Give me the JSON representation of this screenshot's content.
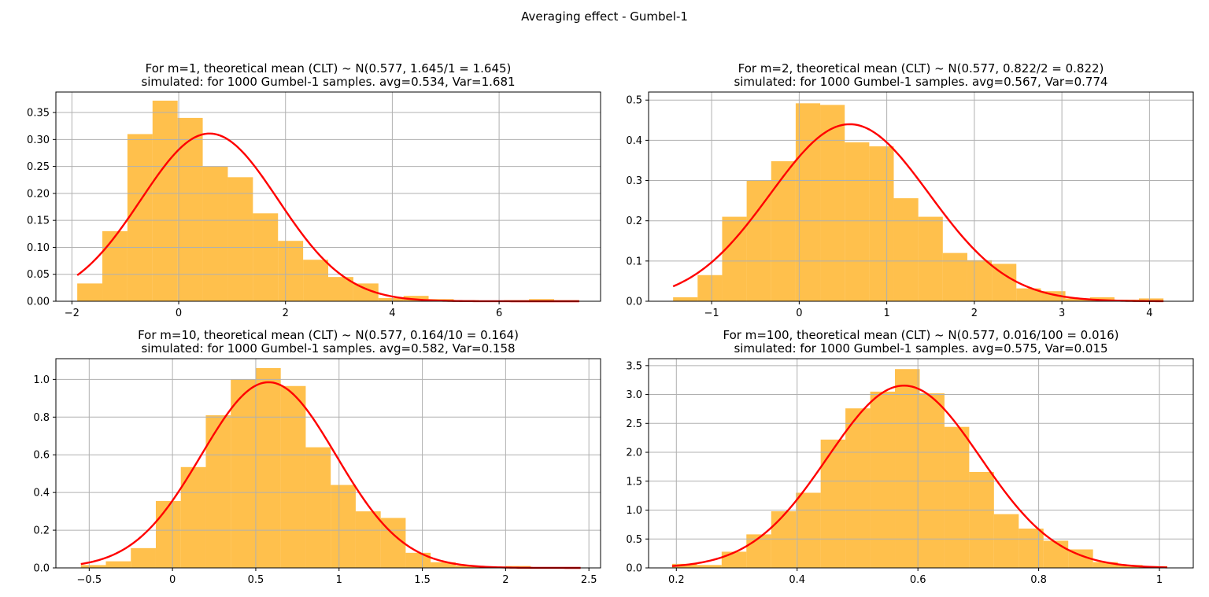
{
  "figure": {
    "suptitle": "Averaging effect - Gumbel-1"
  },
  "colors": {
    "bar": "#FFA500",
    "bar_alpha": 0.7,
    "curve": "#FF0000",
    "grid": "#b0b0b0"
  },
  "chart_data": [
    {
      "type": "bar",
      "title_line1": "For m=1, theoretical mean (CLT) ~ N(0.577, 1.645/1 = 1.645)",
      "title_line2": "simulated: for 1000 Gumbel-1 samples. avg=0.534, Var=1.681",
      "xlim": [
        -2.3,
        7.9
      ],
      "ylim": [
        0,
        0.388
      ],
      "xticks": [
        -2,
        0,
        2,
        4,
        6
      ],
      "yticks": [
        0.0,
        0.05,
        0.1,
        0.15,
        0.2,
        0.25,
        0.3,
        0.35
      ],
      "ytick_decimals": 2,
      "bin_edges": [
        -1.9,
        -1.43,
        -0.96,
        -0.49,
        -0.02,
        0.45,
        0.92,
        1.39,
        1.86,
        2.33,
        2.8,
        3.27,
        3.74,
        4.21,
        4.68,
        5.15,
        5.62,
        6.09,
        6.56,
        7.03,
        7.5
      ],
      "densities": [
        0.033,
        0.13,
        0.31,
        0.372,
        0.34,
        0.25,
        0.23,
        0.163,
        0.112,
        0.077,
        0.045,
        0.033,
        0.006,
        0.01,
        0.004,
        0.002,
        0.001,
        0.002,
        0.004,
        0.002
      ],
      "normal_curve": {
        "mean": 0.577,
        "variance": 1.645,
        "x_range": [
          -1.9,
          7.5
        ]
      }
    },
    {
      "type": "bar",
      "title_line1": "For m=2, theoretical mean (CLT) ~ N(0.577, 0.822/2 = 0.822)",
      "title_line2": "simulated: for 1000 Gumbel-1 samples. avg=0.567, Var=0.774",
      "xlim": [
        -1.72,
        4.5
      ],
      "ylim": [
        0,
        0.52
      ],
      "xticks": [
        -1,
        0,
        1,
        2,
        3,
        4
      ],
      "yticks": [
        0.0,
        0.1,
        0.2,
        0.3,
        0.4,
        0.5
      ],
      "ytick_decimals": 1,
      "bin_edges": [
        -1.44,
        -1.16,
        -0.88,
        -0.6,
        -0.32,
        -0.04,
        0.24,
        0.52,
        0.8,
        1.08,
        1.36,
        1.64,
        1.92,
        2.2,
        2.48,
        2.76,
        3.04,
        3.32,
        3.6,
        3.88,
        4.16
      ],
      "densities": [
        0.01,
        0.065,
        0.21,
        0.3,
        0.348,
        0.492,
        0.488,
        0.395,
        0.385,
        0.256,
        0.21,
        0.12,
        0.102,
        0.093,
        0.032,
        0.025,
        0.007,
        0.01,
        0.004,
        0.007
      ],
      "normal_curve": {
        "mean": 0.577,
        "variance": 0.822,
        "x_range": [
          -1.44,
          4.16
        ]
      }
    },
    {
      "type": "bar",
      "title_line1": "For m=10, theoretical mean (CLT) ~ N(0.577, 0.164/10 = 0.164)",
      "title_line2": "simulated: for 1000 Gumbel-1 samples. avg=0.582, Var=0.158",
      "xlim": [
        -0.7,
        2.57
      ],
      "ylim": [
        0,
        1.11
      ],
      "xticks": [
        -0.5,
        0.0,
        0.5,
        1.0,
        1.5,
        2.0,
        2.5
      ],
      "yticks": [
        0.0,
        0.2,
        0.4,
        0.6,
        0.8,
        1.0
      ],
      "ytick_decimals": 1,
      "bin_edges": [
        -0.55,
        -0.4,
        -0.25,
        -0.1,
        0.05,
        0.2,
        0.35,
        0.5,
        0.65,
        0.8,
        0.95,
        1.1,
        1.25,
        1.4,
        1.55,
        1.7,
        1.85,
        2.0,
        2.15,
        2.3,
        2.45
      ],
      "densities": [
        0.015,
        0.035,
        0.105,
        0.355,
        0.535,
        0.81,
        1.0,
        1.06,
        0.965,
        0.64,
        0.44,
        0.3,
        0.265,
        0.08,
        0.03,
        0.012,
        0.007,
        0.01,
        0.003,
        0.003
      ],
      "normal_curve": {
        "mean": 0.577,
        "variance": 0.164,
        "x_range": [
          -0.55,
          2.45
        ]
      }
    },
    {
      "type": "bar",
      "title_line1": "For m=100, theoretical mean (CLT) ~ N(0.577, 0.016/100 = 0.016)",
      "title_line2": "simulated: for 1000 Gumbel-1 samples. avg=0.575, Var=0.015",
      "xlim": [
        0.154,
        1.056
      ],
      "ylim": [
        0,
        3.62
      ],
      "xticks": [
        0.2,
        0.4,
        0.6,
        0.8,
        1.0
      ],
      "yticks": [
        0.0,
        0.5,
        1.0,
        1.5,
        2.0,
        2.5,
        3.0,
        3.5
      ],
      "ytick_decimals": 1,
      "bin_edges": [
        0.193,
        0.234,
        0.275,
        0.316,
        0.357,
        0.398,
        0.439,
        0.48,
        0.521,
        0.562,
        0.603,
        0.644,
        0.685,
        0.726,
        0.767,
        0.808,
        0.849,
        0.89,
        0.931,
        0.972,
        1.013
      ],
      "densities": [
        0.07,
        0.05,
        0.28,
        0.58,
        0.98,
        1.3,
        2.22,
        2.76,
        3.05,
        3.44,
        3.02,
        2.44,
        1.66,
        0.93,
        0.68,
        0.47,
        0.32,
        0.1,
        0.05,
        0.03
      ],
      "normal_curve": {
        "mean": 0.577,
        "variance": 0.016,
        "x_range": [
          0.193,
          1.013
        ]
      }
    }
  ]
}
